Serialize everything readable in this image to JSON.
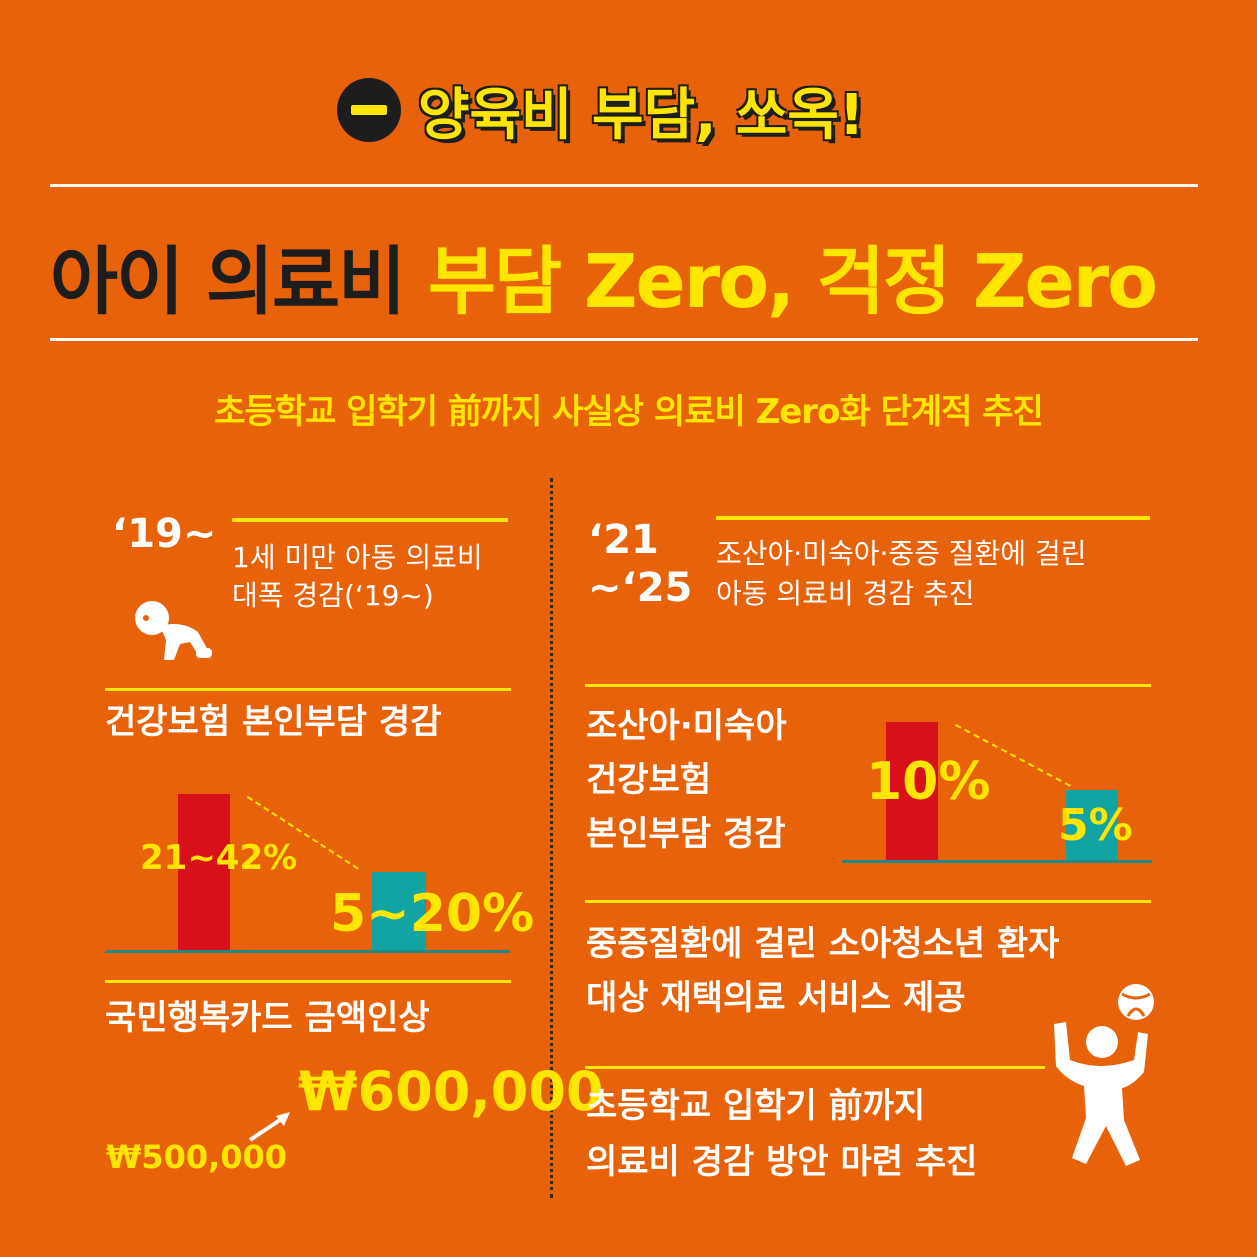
{
  "header": {
    "section_title": "양육비 부담, 쏘옥!"
  },
  "headline": {
    "part1": "아이 의료비 ",
    "part2": "부담 Zero, 걱정 Zero"
  },
  "subheadline": "초등학교 입학기 前까지 사실상 의료비 Zero화 단계적 추진",
  "left": {
    "year": "‘19~",
    "desc_line1": "1세 미만 아동 의료비",
    "desc_line2": "대폭 경감(‘19~)",
    "icon": "crawling-baby-icon",
    "insurance": {
      "heading": "건강보험 본인부담 경감",
      "before": "21~42%",
      "after": "5~20%"
    },
    "card": {
      "heading": "국민행복카드 금액인상",
      "before": "₩500,000",
      "after": "₩600,000"
    }
  },
  "right": {
    "year_line1": "‘21",
    "year_line2": "~‘25",
    "desc_line1": "조산아·미숙아·중증 질환에 걸린",
    "desc_line2": "아동 의료비 경감 추진",
    "insurance": {
      "heading_line1": "조산아·미숙아",
      "heading_line2": "건강보험",
      "heading_line3": "본인부담 경감",
      "before": "10%",
      "after": "5%"
    },
    "homecare": {
      "line1": "중증질환에 걸린 소아청소년 환자",
      "line2": "대상 재택의료 서비스 제공"
    },
    "school": {
      "line1": "초등학교 입학기 前까지",
      "line2": "의료비 경감 방안 마련 추진"
    },
    "icon": "ball-playing-child-icon"
  },
  "colors": {
    "background": "#e8620a",
    "accent": "#ffe600",
    "dark": "#1d1d1d",
    "red_bar": "#d7101a",
    "teal_bar": "#12a3a3"
  }
}
